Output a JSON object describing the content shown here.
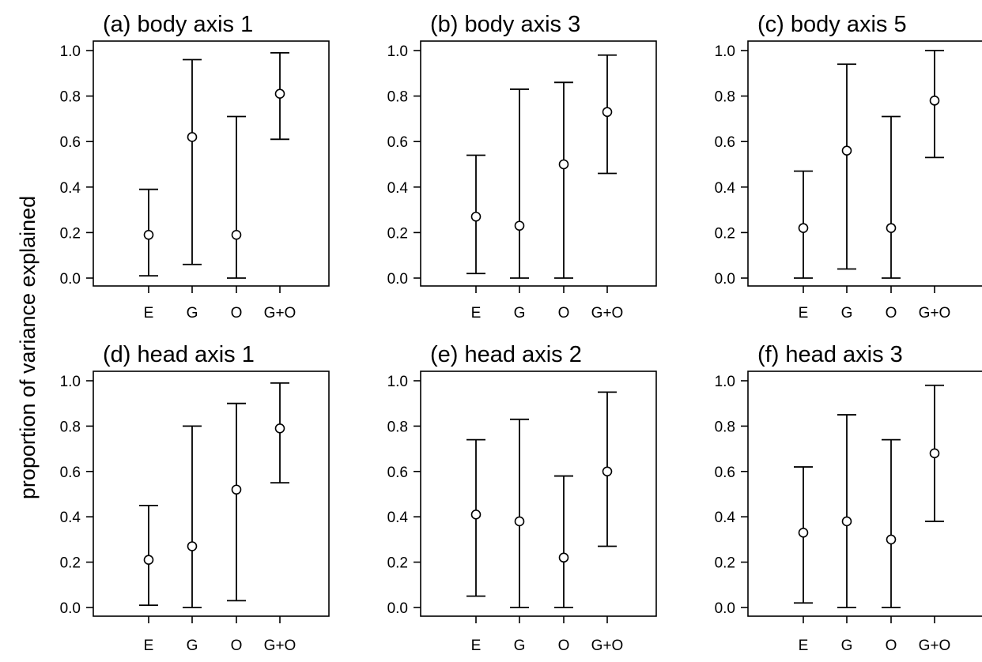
{
  "figure": {
    "ylabel": "proportion of variance explained"
  },
  "chart_data": [
    {
      "type": "scatter",
      "title": "(a) body axis 1",
      "categories": [
        "E",
        "G",
        "O",
        "G+O"
      ],
      "estimate": [
        0.19,
        0.62,
        0.19,
        0.81
      ],
      "lower": [
        0.01,
        0.06,
        0.0,
        0.61
      ],
      "upper": [
        0.39,
        0.96,
        0.71,
        0.99
      ],
      "ylim": [
        0,
        1
      ],
      "yticks": [
        "0.0",
        "0.2",
        "0.4",
        "0.6",
        "0.8",
        "1.0"
      ]
    },
    {
      "type": "scatter",
      "title": "(b) body axis 3",
      "categories": [
        "E",
        "G",
        "O",
        "G+O"
      ],
      "estimate": [
        0.27,
        0.23,
        0.5,
        0.73
      ],
      "lower": [
        0.02,
        0.0,
        0.0,
        0.46
      ],
      "upper": [
        0.54,
        0.83,
        0.86,
        0.98
      ],
      "ylim": [
        0,
        1
      ],
      "yticks": [
        "0.0",
        "0.2",
        "0.4",
        "0.6",
        "0.8",
        "1.0"
      ]
    },
    {
      "type": "scatter",
      "title": "(c) body axis 5",
      "categories": [
        "E",
        "G",
        "O",
        "G+O"
      ],
      "estimate": [
        0.22,
        0.56,
        0.22,
        0.78
      ],
      "lower": [
        0.0,
        0.04,
        0.0,
        0.53
      ],
      "upper": [
        0.47,
        0.94,
        0.71,
        1.0
      ],
      "ylim": [
        0,
        1
      ],
      "yticks": [
        "0.0",
        "0.2",
        "0.4",
        "0.6",
        "0.8",
        "1.0"
      ]
    },
    {
      "type": "scatter",
      "title": "(d) head axis 1",
      "categories": [
        "E",
        "G",
        "O",
        "G+O"
      ],
      "estimate": [
        0.21,
        0.27,
        0.52,
        0.79
      ],
      "lower": [
        0.01,
        0.0,
        0.03,
        0.55
      ],
      "upper": [
        0.45,
        0.8,
        0.9,
        0.99
      ],
      "ylim": [
        0,
        1
      ],
      "yticks": [
        "0.0",
        "0.2",
        "0.4",
        "0.6",
        "0.8",
        "1.0"
      ]
    },
    {
      "type": "scatter",
      "title": "(e) head axis 2",
      "categories": [
        "E",
        "G",
        "O",
        "G+O"
      ],
      "estimate": [
        0.41,
        0.38,
        0.22,
        0.6
      ],
      "lower": [
        0.05,
        0.0,
        0.0,
        0.27
      ],
      "upper": [
        0.74,
        0.83,
        0.58,
        0.95
      ],
      "ylim": [
        0,
        1
      ],
      "yticks": [
        "0.0",
        "0.2",
        "0.4",
        "0.6",
        "0.8",
        "1.0"
      ]
    },
    {
      "type": "scatter",
      "title": "(f) head axis 3",
      "categories": [
        "E",
        "G",
        "O",
        "G+O"
      ],
      "estimate": [
        0.33,
        0.38,
        0.3,
        0.68
      ],
      "lower": [
        0.02,
        0.0,
        0.0,
        0.38
      ],
      "upper": [
        0.62,
        0.85,
        0.74,
        0.98
      ],
      "ylim": [
        0,
        1
      ],
      "yticks": [
        "0.0",
        "0.2",
        "0.4",
        "0.6",
        "0.8",
        "1.0"
      ]
    }
  ]
}
